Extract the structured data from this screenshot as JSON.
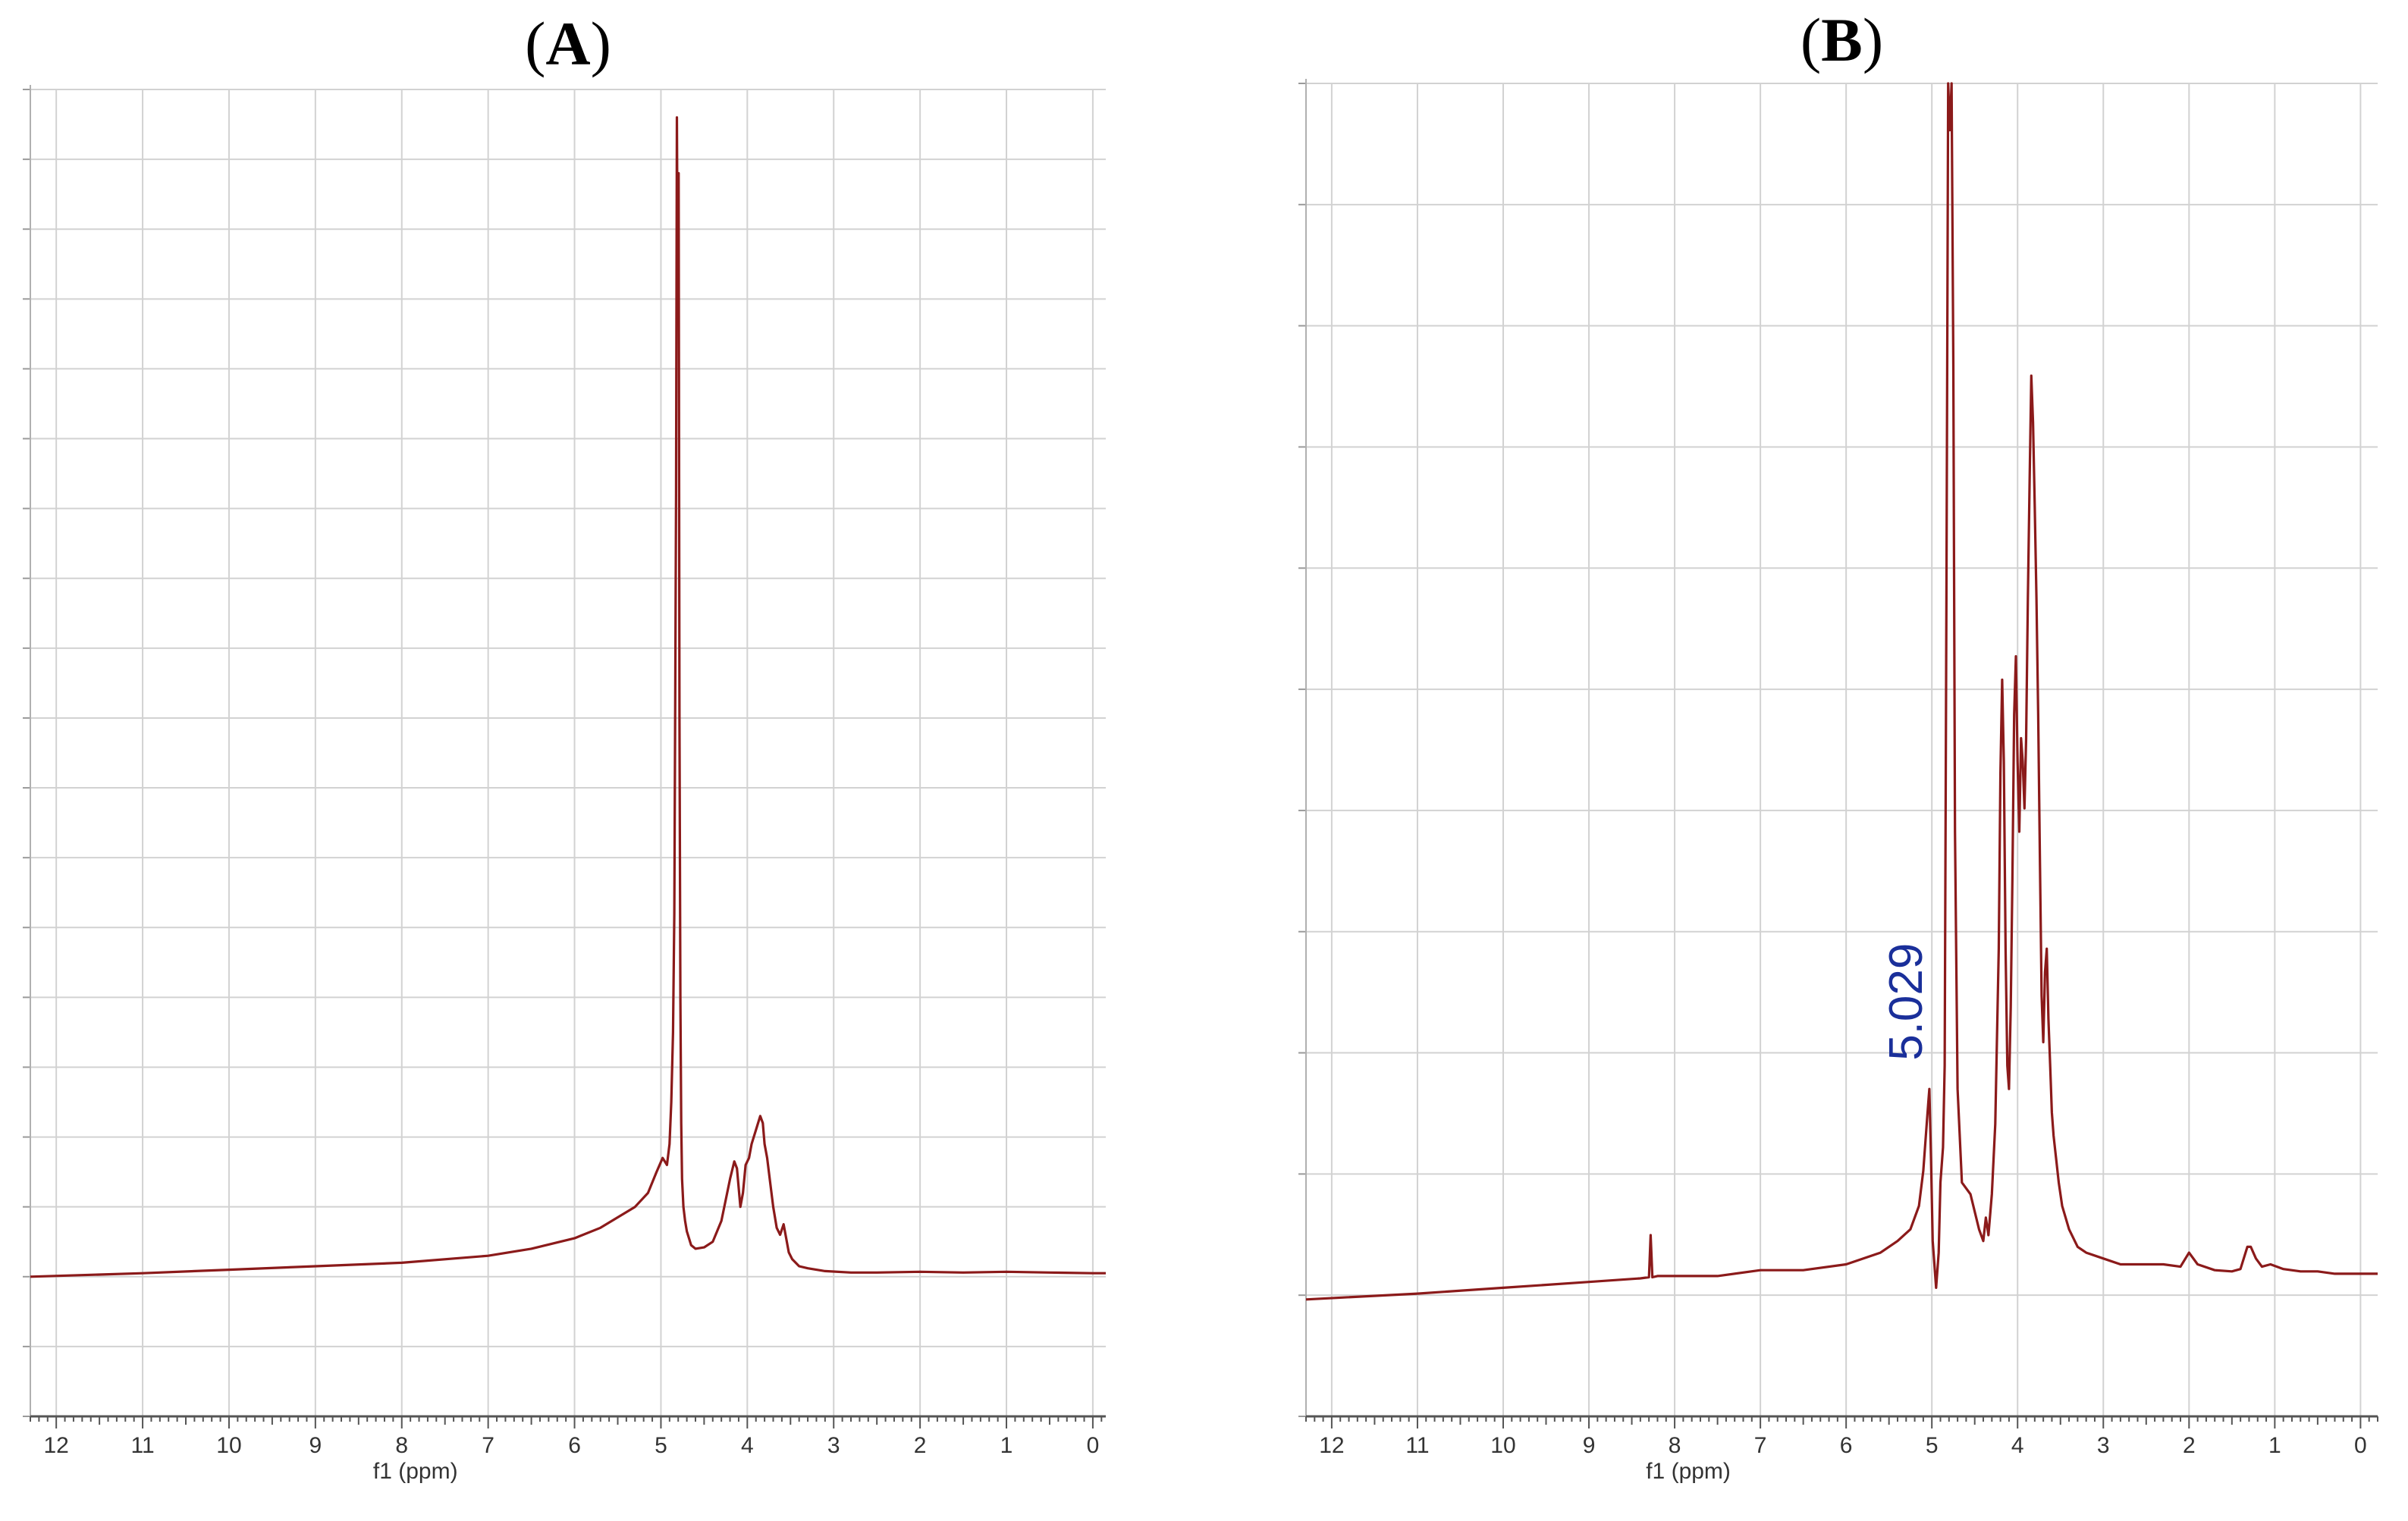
{
  "chart_data": [
    {
      "type": "line",
      "panel_label": "A",
      "xlabel": "f1 (ppm)",
      "x_ticks": [
        "12",
        "11",
        "10",
        "9",
        "8",
        "7",
        "6",
        "5",
        "4",
        "3",
        "2",
        "1",
        "0"
      ],
      "xlim": [
        12.3,
        -0.15
      ],
      "ylim": [
        -2,
        17
      ],
      "x_reversed": true,
      "grid": true,
      "line_color": "#8b1a1a",
      "series": [
        {
          "x": [
            12.3,
            11,
            10,
            9,
            8,
            7,
            6.5,
            6,
            5.7,
            5.5,
            5.3,
            5.15,
            5.05,
            4.98,
            4.93,
            4.9,
            4.88,
            4.86,
            4.845,
            4.835,
            4.825,
            4.815,
            4.805,
            4.795,
            4.785,
            4.775,
            4.765,
            4.755,
            4.74,
            4.72,
            4.7,
            4.65,
            4.6,
            4.5,
            4.4,
            4.3,
            4.2,
            4.15,
            4.12,
            4.08,
            4.05,
            4.02,
            3.98,
            3.95,
            3.9,
            3.85,
            3.82,
            3.8,
            3.77,
            3.74,
            3.7,
            3.66,
            3.62,
            3.58,
            3.55,
            3.52,
            3.48,
            3.4,
            3.3,
            3.1,
            2.8,
            2.5,
            2.0,
            1.5,
            1.0,
            0.5,
            0,
            -0.15
          ],
          "y": [
            0,
            0.05,
            0.1,
            0.15,
            0.2,
            0.3,
            0.4,
            0.55,
            0.7,
            0.85,
            1.0,
            1.2,
            1.5,
            1.7,
            1.6,
            1.9,
            2.5,
            3.5,
            5.2,
            8.0,
            11.2,
            16.6,
            14.1,
            15.8,
            8.0,
            4.0,
            2.2,
            1.4,
            1.0,
            0.8,
            0.65,
            0.45,
            0.4,
            0.42,
            0.5,
            0.8,
            1.4,
            1.65,
            1.55,
            1.0,
            1.2,
            1.6,
            1.7,
            1.9,
            2.1,
            2.3,
            2.2,
            1.9,
            1.7,
            1.4,
            1.0,
            0.7,
            0.6,
            0.75,
            0.55,
            0.35,
            0.25,
            0.15,
            0.12,
            0.08,
            0.06,
            0.06,
            0.07,
            0.06,
            0.07,
            0.06,
            0.05,
            0.05
          ]
        }
      ]
    },
    {
      "type": "line",
      "panel_label": "B",
      "xlabel": "f1 (ppm)",
      "x_ticks": [
        "12",
        "11",
        "10",
        "9",
        "8",
        "7",
        "6",
        "5",
        "4",
        "3",
        "2",
        "1",
        "0"
      ],
      "xlim": [
        12.3,
        -0.2
      ],
      "ylim": [
        -1,
        10.4
      ],
      "x_reversed": true,
      "grid": true,
      "line_color": "#8b1a1a",
      "annotations": [
        {
          "text": "5.029",
          "x": 5.029,
          "y": 1.9
        }
      ],
      "series": [
        {
          "x": [
            12.3,
            11,
            10,
            9,
            8.4,
            8.3,
            8.28,
            8.26,
            8.2,
            7.5,
            7.0,
            6.5,
            6.0,
            5.6,
            5.4,
            5.25,
            5.15,
            5.1,
            5.06,
            5.04,
            5.029,
            5.01,
            4.99,
            4.95,
            4.92,
            4.9,
            4.87,
            4.85,
            4.83,
            4.81,
            4.79,
            4.77,
            4.75,
            4.73,
            4.7,
            4.65,
            4.55,
            4.45,
            4.4,
            4.37,
            4.34,
            4.3,
            4.26,
            4.22,
            4.2,
            4.18,
            4.16,
            4.14,
            4.12,
            4.1,
            4.08,
            4.06,
            4.04,
            4.02,
            4.0,
            3.98,
            3.96,
            3.94,
            3.92,
            3.9,
            3.88,
            3.86,
            3.84,
            3.82,
            3.8,
            3.78,
            3.76,
            3.74,
            3.72,
            3.7,
            3.68,
            3.66,
            3.64,
            3.62,
            3.6,
            3.58,
            3.55,
            3.52,
            3.48,
            3.4,
            3.3,
            3.2,
            3.0,
            2.8,
            2.5,
            2.3,
            2.1,
            2.0,
            1.9,
            1.7,
            1.5,
            1.4,
            1.32,
            1.28,
            1.22,
            1.15,
            1.05,
            0.9,
            0.7,
            0.5,
            0.3,
            0,
            -0.2
          ],
          "y": [
            0,
            0.05,
            0.1,
            0.15,
            0.18,
            0.19,
            0.55,
            0.19,
            0.2,
            0.2,
            0.25,
            0.25,
            0.3,
            0.4,
            0.5,
            0.6,
            0.8,
            1.1,
            1.5,
            1.7,
            1.8,
            1.2,
            0.5,
            0.1,
            0.4,
            1.0,
            1.3,
            2.0,
            6.0,
            10.4,
            10.0,
            10.4,
            8.0,
            4.0,
            1.8,
            1.0,
            0.9,
            0.6,
            0.5,
            0.7,
            0.55,
            0.9,
            1.5,
            3.0,
            4.5,
            5.3,
            4.6,
            3.0,
            2.0,
            1.8,
            2.5,
            3.6,
            5.0,
            5.5,
            4.6,
            4.0,
            4.8,
            4.6,
            4.2,
            4.8,
            6.0,
            7.0,
            7.9,
            7.5,
            6.8,
            6.0,
            5.0,
            3.8,
            2.6,
            2.2,
            2.8,
            3.0,
            2.4,
            2.0,
            1.6,
            1.4,
            1.2,
            1.0,
            0.8,
            0.6,
            0.45,
            0.4,
            0.35,
            0.3,
            0.3,
            0.3,
            0.28,
            0.4,
            0.3,
            0.25,
            0.24,
            0.26,
            0.45,
            0.45,
            0.35,
            0.28,
            0.3,
            0.26,
            0.24,
            0.24,
            0.22,
            0.22,
            0.22
          ]
        }
      ]
    }
  ]
}
